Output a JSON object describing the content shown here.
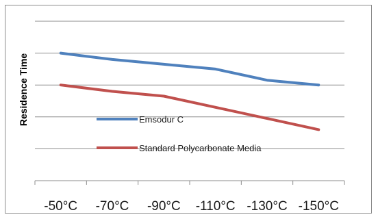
{
  "chart_data": {
    "type": "line",
    "title": "",
    "xlabel": "",
    "ylabel": "Residence Time",
    "categories": [
      "-50°C",
      "-70°C",
      "-90°C",
      "-110°C",
      "-130°C",
      "-150°C"
    ],
    "ylim": [
      0,
      5
    ],
    "grid": true,
    "legend_position": "center-left",
    "series": [
      {
        "name": "Emsodur C",
        "color": "#4f81bd",
        "values": [
          4.0,
          3.8,
          3.65,
          3.5,
          3.15,
          3.0
        ]
      },
      {
        "name": "Standard Polycarbonate Media",
        "color": "#c0504d",
        "values": [
          3.0,
          2.8,
          2.65,
          2.3,
          1.95,
          1.6
        ]
      }
    ]
  }
}
